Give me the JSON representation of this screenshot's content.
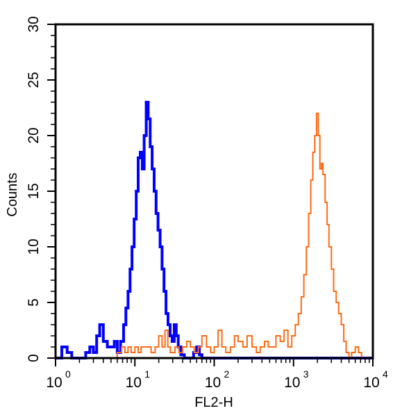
{
  "chart_data": {
    "type": "line",
    "title": "",
    "xlabel": "FL2-H",
    "ylabel": "Counts",
    "x_scale": "log",
    "xlim": [
      1,
      10000
    ],
    "ylim": [
      0,
      30
    ],
    "x_ticks": [
      {
        "base": "10",
        "exp": "0",
        "value": 1
      },
      {
        "base": "10",
        "exp": "1",
        "value": 10
      },
      {
        "base": "10",
        "exp": "2",
        "value": 100
      },
      {
        "base": "10",
        "exp": "3",
        "value": 1000
      },
      {
        "base": "10",
        "exp": "4",
        "value": 10000
      }
    ],
    "y_ticks": [
      "0",
      "5",
      "10",
      "15",
      "20",
      "25",
      "30"
    ],
    "grid": false,
    "series": [
      {
        "color": "#0000ff",
        "points": [
          [
            1.0,
            0
          ],
          [
            1.2,
            1
          ],
          [
            1.4,
            0.5
          ],
          [
            1.6,
            0
          ],
          [
            2.0,
            0
          ],
          [
            2.4,
            0.5
          ],
          [
            2.7,
            1
          ],
          [
            3.0,
            0.5
          ],
          [
            3.3,
            2
          ],
          [
            3.6,
            3
          ],
          [
            4.0,
            1.5
          ],
          [
            4.5,
            1
          ],
          [
            5.0,
            1
          ],
          [
            5.5,
            1.5
          ],
          [
            6.0,
            0.5
          ],
          [
            6.6,
            1.5
          ],
          [
            7.2,
            3
          ],
          [
            7.7,
            4.5
          ],
          [
            8.2,
            6
          ],
          [
            8.7,
            8
          ],
          [
            9.2,
            10
          ],
          [
            9.8,
            12.5
          ],
          [
            10.4,
            15
          ],
          [
            11.0,
            18
          ],
          [
            11.7,
            18.5
          ],
          [
            12.4,
            17
          ],
          [
            13.1,
            20
          ],
          [
            13.9,
            23
          ],
          [
            14.7,
            21.5
          ],
          [
            15.6,
            19
          ],
          [
            16.5,
            17
          ],
          [
            17.5,
            15
          ],
          [
            18.5,
            13
          ],
          [
            19.6,
            11.5
          ],
          [
            20.8,
            10
          ],
          [
            22.0,
            8
          ],
          [
            23.3,
            6
          ],
          [
            24.7,
            4
          ],
          [
            26.2,
            3
          ],
          [
            27.8,
            2
          ],
          [
            29.5,
            1.5
          ],
          [
            31.3,
            3
          ],
          [
            33.2,
            2
          ],
          [
            35.2,
            1
          ],
          [
            38.0,
            0.3
          ],
          [
            42.0,
            0
          ],
          [
            50.0,
            0
          ],
          [
            55.0,
            0.5
          ],
          [
            60.0,
            1
          ],
          [
            65.0,
            0.3
          ],
          [
            70.0,
            0
          ],
          [
            100.0,
            0
          ],
          [
            10000,
            0
          ]
        ]
      },
      {
        "color": "#ff6a13",
        "points": [
          [
            1.0,
            0
          ],
          [
            5.0,
            0
          ],
          [
            6.0,
            0.5
          ],
          [
            6.8,
            1
          ],
          [
            7.5,
            0.5
          ],
          [
            8.2,
            1
          ],
          [
            9.0,
            0.5
          ],
          [
            10.0,
            1
          ],
          [
            11.0,
            0.5
          ],
          [
            12.0,
            1
          ],
          [
            14.0,
            1
          ],
          [
            16.0,
            0.5
          ],
          [
            18.0,
            1
          ],
          [
            20.0,
            2
          ],
          [
            22.0,
            1
          ],
          [
            24.0,
            2.5
          ],
          [
            26.0,
            1
          ],
          [
            28.0,
            0.5
          ],
          [
            32.0,
            1
          ],
          [
            36.0,
            0.5
          ],
          [
            40.0,
            1
          ],
          [
            45.0,
            1.5
          ],
          [
            50.0,
            1
          ],
          [
            56.0,
            0.5
          ],
          [
            63.0,
            1
          ],
          [
            70.0,
            2
          ],
          [
            80.0,
            1
          ],
          [
            90.0,
            0.5
          ],
          [
            100.0,
            1
          ],
          [
            112.0,
            2.5
          ],
          [
            125.0,
            1
          ],
          [
            140.0,
            0.5
          ],
          [
            160.0,
            1
          ],
          [
            180.0,
            2
          ],
          [
            200.0,
            1.5
          ],
          [
            230.0,
            1
          ],
          [
            260.0,
            2
          ],
          [
            300.0,
            1
          ],
          [
            340.0,
            0.5
          ],
          [
            380.0,
            1
          ],
          [
            430.0,
            1.5
          ],
          [
            480.0,
            1
          ],
          [
            540.0,
            1
          ],
          [
            600.0,
            2
          ],
          [
            680.0,
            1.5
          ],
          [
            760.0,
            2.5
          ],
          [
            850.0,
            1
          ],
          [
            950.0,
            2
          ],
          [
            1050.0,
            3
          ],
          [
            1150.0,
            4
          ],
          [
            1250.0,
            5.5
          ],
          [
            1350.0,
            7.5
          ],
          [
            1450.0,
            10
          ],
          [
            1550.0,
            13
          ],
          [
            1650.0,
            16
          ],
          [
            1750.0,
            18.5
          ],
          [
            1850.0,
            20
          ],
          [
            1950.0,
            22
          ],
          [
            2050.0,
            20
          ],
          [
            2150.0,
            17
          ],
          [
            2250.0,
            17.5
          ],
          [
            2350.0,
            16.5
          ],
          [
            2500.0,
            14
          ],
          [
            2650.0,
            12
          ],
          [
            2800.0,
            10
          ],
          [
            3000.0,
            8
          ],
          [
            3200.0,
            6
          ],
          [
            3450.0,
            5
          ],
          [
            3700.0,
            4
          ],
          [
            4000.0,
            3
          ],
          [
            4300.0,
            1.5
          ],
          [
            4600.0,
            0.5
          ],
          [
            5000.0,
            0
          ],
          [
            5400.0,
            0.5
          ],
          [
            6000.0,
            1
          ],
          [
            6600.0,
            0.5
          ],
          [
            7200.0,
            0
          ],
          [
            10000,
            0
          ]
        ]
      }
    ]
  }
}
